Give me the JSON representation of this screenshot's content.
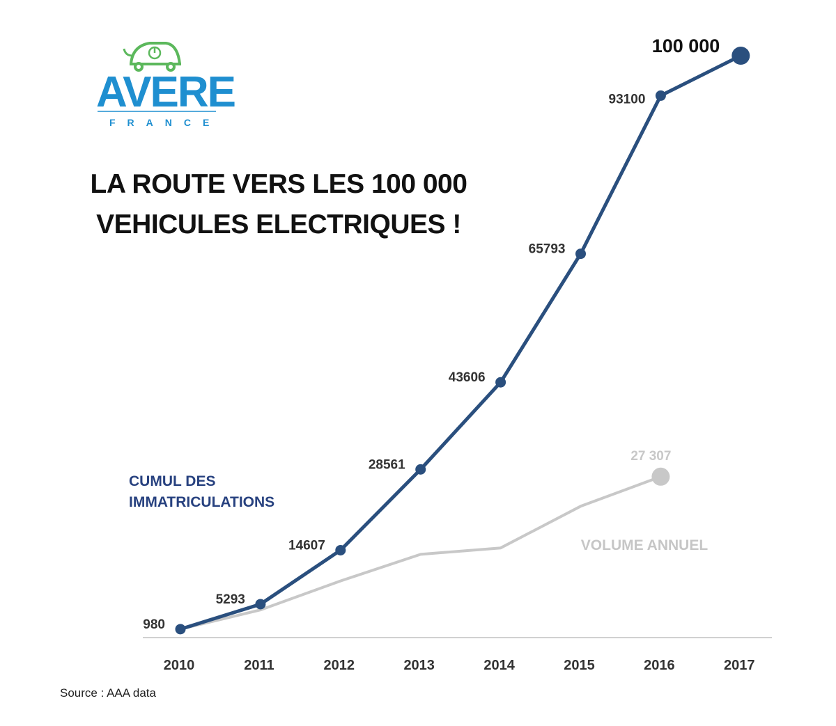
{
  "logo": {
    "name": "AVERE",
    "subtitle": "FRANCE"
  },
  "chart_data": {
    "type": "line",
    "title": "LA ROUTE VERS LES 100 000 VEHICULES ELECTRIQUES !",
    "source": "Source : AAA data",
    "categories": [
      "2010",
      "2011",
      "2012",
      "2013",
      "2014",
      "2015",
      "2016",
      "2017"
    ],
    "ylim": [
      0,
      100000
    ],
    "series": [
      {
        "name": "CUMUL DES IMMATRICULATIONS",
        "color": "#2a4f7e",
        "values": [
          980,
          5293,
          14607,
          28561,
          43606,
          65793,
          93100,
          100000
        ],
        "value_labels": [
          "980",
          "5293",
          "14607",
          "28561",
          "43606",
          "65793",
          "93100",
          "100 000"
        ]
      },
      {
        "name": "VOLUME ANNUEL",
        "color": "#c8c8c8",
        "values": [
          980,
          4300,
          9300,
          13900,
          15000,
          22200,
          27307,
          null
        ],
        "value_labels": [
          null,
          null,
          null,
          null,
          null,
          null,
          "27 307",
          null
        ]
      }
    ]
  }
}
